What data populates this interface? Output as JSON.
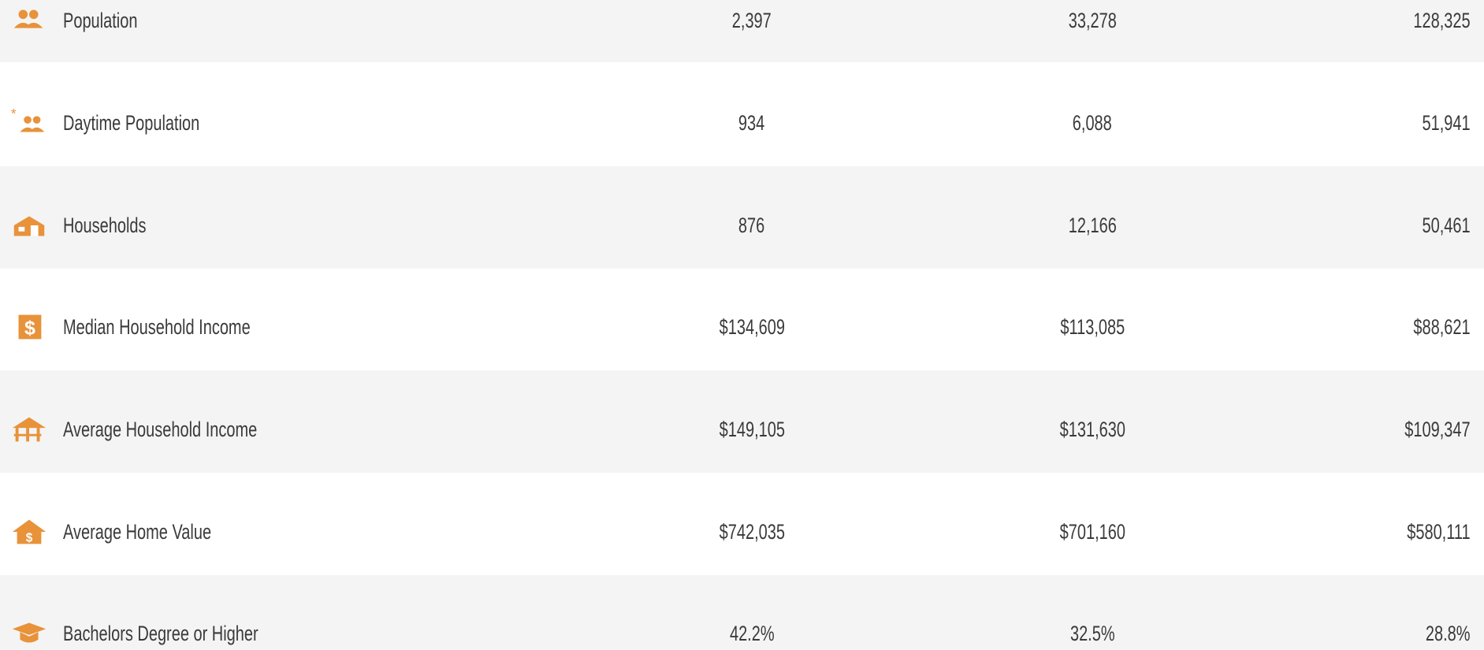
{
  "table": {
    "rows": [
      {
        "label": "Population",
        "values": [
          "2,397",
          "33,278",
          "128,325"
        ]
      },
      {
        "label": "Daytime Population",
        "values": [
          "934",
          "6,088",
          "51,941"
        ]
      },
      {
        "label": "Households",
        "values": [
          "876",
          "12,166",
          "50,461"
        ]
      },
      {
        "label": "Median Household Income",
        "values": [
          "$134,609",
          "$113,085",
          "$88,621"
        ]
      },
      {
        "label": "Average Household Income",
        "values": [
          "$149,105",
          "$131,630",
          "$109,347"
        ]
      },
      {
        "label": "Average Home Value",
        "values": [
          "$742,035",
          "$701,160",
          "$580,111"
        ]
      },
      {
        "label": "Bachelors Degree or Higher",
        "values": [
          "42.2%",
          "32.5%",
          "28.8%"
        ]
      }
    ]
  }
}
